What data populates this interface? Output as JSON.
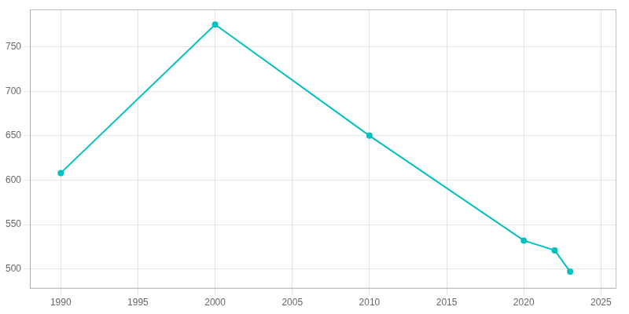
{
  "chart_data": {
    "type": "line",
    "x": [
      1990,
      2000,
      2010,
      2020,
      2022,
      2023
    ],
    "values": [
      608,
      775,
      650,
      532,
      521,
      497
    ],
    "color": "#00C0C0",
    "marker": "o",
    "xlim": [
      1988,
      2026
    ],
    "ylim": [
      478,
      792
    ],
    "xticks": [
      1990,
      1995,
      2000,
      2005,
      2010,
      2015,
      2020,
      2025
    ],
    "yticks": [
      500,
      550,
      600,
      650,
      700,
      750
    ],
    "grid": true
  }
}
